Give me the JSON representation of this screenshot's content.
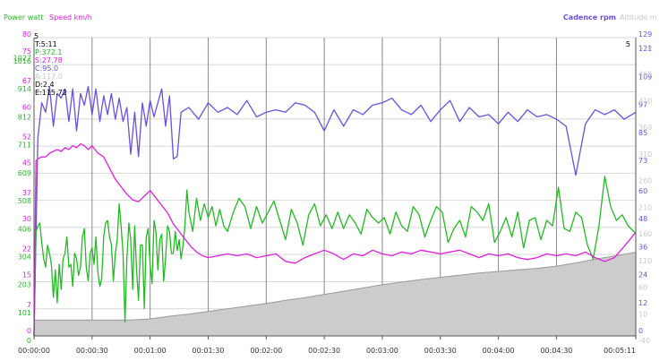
{
  "legend": {
    "left": [
      {
        "label": "Power watt",
        "color": "#22bb22"
      },
      {
        "label": "Speed km/h",
        "color": "#e020e0"
      }
    ],
    "right": [
      {
        "label": "Cadence rpm",
        "color": "#6a4fe0"
      },
      {
        "label": "Altitude m",
        "color": "#c8c8c8"
      }
    ]
  },
  "cursor": {
    "corner_left": "5",
    "corner_right": "5",
    "readouts": [
      {
        "text": "T:5:11",
        "color": "#000000"
      },
      {
        "text": "P:372.1",
        "color": "#22bb22"
      },
      {
        "text": "S:27.78",
        "color": "#e020e0"
      },
      {
        "text": "C:95.0",
        "color": "#6a4fe0"
      },
      {
        "text": "A:117.0",
        "color": "#c8c8c8"
      },
      {
        "text": "D:2.4",
        "color": "#000000"
      },
      {
        "text": "E:115.72",
        "color": "#000000"
      }
    ]
  },
  "chart_data": {
    "type": "line",
    "x_unit": "seconds",
    "x_range": [
      0,
      311
    ],
    "x_ticks": [
      {
        "t": 0,
        "label": "00:00:00"
      },
      {
        "t": 30,
        "label": "00:00:30"
      },
      {
        "t": 60,
        "label": "00:01:00"
      },
      {
        "t": 90,
        "label": "00:01:30"
      },
      {
        "t": 120,
        "label": "00:02:00"
      },
      {
        "t": 150,
        "label": "00:02:30"
      },
      {
        "t": 180,
        "label": "00:03:00"
      },
      {
        "t": 210,
        "label": "00:03:30"
      },
      {
        "t": 240,
        "label": "00:04:00"
      },
      {
        "t": 270,
        "label": "00:04:30"
      },
      {
        "t": 311,
        "label": "00:05:11"
      }
    ],
    "grid": true,
    "axes": {
      "speed": {
        "side": "left",
        "color": "#e020e0",
        "range": [
          0,
          80
        ],
        "ticks": [
          {
            "v": 80,
            "label": "80"
          },
          {
            "v": 75,
            "label": "75"
          },
          {
            "v": 67,
            "label": "67"
          },
          {
            "v": 60,
            "label": "60"
          },
          {
            "v": 52,
            "label": "52"
          },
          {
            "v": 45,
            "label": "45"
          },
          {
            "v": 37,
            "label": "37"
          },
          {
            "v": 30,
            "label": "30"
          },
          {
            "v": 22,
            "label": "22"
          },
          {
            "v": 15,
            "label": "15"
          },
          {
            "v": 7,
            "label": "7"
          },
          {
            "v": 0,
            "label": "0"
          }
        ]
      },
      "power": {
        "side": "left",
        "color": "#22bb22",
        "range": [
          0,
          1084
        ],
        "ticks": [
          {
            "v": 1027,
            "label": "1027"
          },
          {
            "v": 1016,
            "label": "1016"
          },
          {
            "v": 914,
            "label": "914"
          },
          {
            "v": 812,
            "label": "812"
          },
          {
            "v": 711,
            "label": "711"
          },
          {
            "v": 609,
            "label": "609"
          },
          {
            "v": 508,
            "label": "508"
          },
          {
            "v": 406,
            "label": "406"
          },
          {
            "v": 304,
            "label": "304"
          },
          {
            "v": 203,
            "label": "203"
          },
          {
            "v": 101,
            "label": "101"
          },
          {
            "v": 0,
            "label": "0"
          }
        ]
      },
      "cadence": {
        "side": "right",
        "color": "#6a4fe0",
        "range": [
          0,
          128
        ],
        "ticks": [
          {
            "v": 129,
            "label": "129"
          },
          {
            "v": 121,
            "label": "121"
          },
          {
            "v": 109,
            "label": "109"
          },
          {
            "v": 97,
            "label": "97"
          },
          {
            "v": 85,
            "label": "85"
          },
          {
            "v": 73,
            "label": "73"
          },
          {
            "v": 60,
            "label": "60"
          },
          {
            "v": 48,
            "label": "48"
          },
          {
            "v": 36,
            "label": "36"
          },
          {
            "v": 24,
            "label": "24"
          },
          {
            "v": 12,
            "label": "12"
          },
          {
            "v": 0,
            "label": "0"
          }
        ]
      },
      "altitude": {
        "side": "right",
        "color": "#c8c8c8",
        "range": [
          -40,
          520
        ],
        "ticks": [
          {
            "v": 510,
            "label": "510"
          },
          {
            "v": 460,
            "label": "460"
          },
          {
            "v": 410,
            "label": "410"
          },
          {
            "v": 360,
            "label": "360"
          },
          {
            "v": 310,
            "label": "310"
          },
          {
            "v": 260,
            "label": "260"
          },
          {
            "v": 210,
            "label": "210"
          },
          {
            "v": 160,
            "label": "160"
          },
          {
            "v": 110,
            "label": "110"
          },
          {
            "v": 60,
            "label": "60"
          },
          {
            "v": 10,
            "label": "10"
          },
          {
            "v": -40,
            "label": "-40"
          }
        ]
      }
    },
    "series": [
      {
        "name": "Altitude m",
        "axis": "altitude",
        "kind": "area",
        "color": "#cccccc",
        "line_color": "#9a9a9a",
        "x": [
          0,
          10,
          20,
          30,
          40,
          50,
          60,
          70,
          80,
          90,
          100,
          110,
          120,
          130,
          140,
          150,
          160,
          170,
          180,
          190,
          200,
          210,
          220,
          230,
          240,
          250,
          260,
          270,
          280,
          290,
          300,
          311
        ],
        "y": [
          -10,
          -10,
          -10,
          -10,
          -10,
          -10,
          -8,
          -3,
          1,
          6,
          11,
          16,
          21,
          27,
          32,
          38,
          44,
          50,
          56,
          61,
          66,
          70,
          74,
          78,
          81,
          84,
          87,
          91,
          97,
          104,
          110,
          117
        ]
      },
      {
        "name": "Cadence rpm",
        "axis": "cadence",
        "kind": "line",
        "color": "#6a4fe0",
        "x": [
          0,
          2,
          4,
          6,
          8,
          10,
          12,
          14,
          16,
          18,
          20,
          22,
          24,
          26,
          28,
          30,
          32,
          34,
          36,
          38,
          40,
          42,
          44,
          46,
          48,
          50,
          52,
          54,
          56,
          58,
          60,
          62,
          64,
          66,
          68,
          70,
          72,
          74,
          76,
          78,
          80,
          85,
          90,
          95,
          100,
          105,
          110,
          115,
          120,
          125,
          130,
          135,
          140,
          145,
          150,
          155,
          160,
          165,
          170,
          175,
          180,
          185,
          190,
          195,
          200,
          205,
          210,
          215,
          220,
          225,
          230,
          235,
          240,
          245,
          250,
          255,
          260,
          265,
          270,
          275,
          280,
          285,
          290,
          295,
          300,
          305,
          311
        ],
        "y": [
          0,
          85,
          100,
          96,
          107,
          90,
          104,
          102,
          106,
          92,
          106,
          88,
          104,
          99,
          107,
          95,
          106,
          92,
          103,
          95,
          104,
          93,
          102,
          92,
          98,
          78,
          96,
          77,
          100,
          90,
          101,
          94,
          100,
          106,
          90,
          103,
          76,
          77,
          96,
          97,
          98,
          93,
          100,
          96,
          98,
          95,
          101,
          94,
          96,
          97,
          96,
          100,
          99,
          96,
          88,
          97,
          90,
          97,
          95,
          99,
          100,
          102,
          97,
          95,
          99,
          92,
          97,
          101,
          92,
          98,
          94,
          95,
          91,
          96,
          92,
          97,
          94,
          95,
          93,
          90,
          69,
          91,
          97,
          95,
          97,
          93,
          96
        ]
      },
      {
        "name": "Power watt",
        "axis": "power",
        "kind": "line",
        "color": "#22bb22",
        "x": [
          0,
          1,
          2,
          3,
          4,
          5,
          6,
          7,
          8,
          9,
          10,
          11,
          12,
          13,
          14,
          15,
          16,
          17,
          18,
          19,
          20,
          21,
          22,
          23,
          24,
          25,
          26,
          27,
          28,
          29,
          30,
          31,
          32,
          33,
          34,
          35,
          36,
          37,
          38,
          39,
          40,
          41,
          42,
          43,
          44,
          45,
          46,
          47,
          48,
          49,
          50,
          51,
          52,
          53,
          54,
          55,
          56,
          57,
          58,
          59,
          60,
          61,
          62,
          63,
          64,
          65,
          66,
          67,
          68,
          69,
          70,
          71,
          72,
          73,
          74,
          75,
          76,
          77,
          78,
          79,
          80,
          82,
          84,
          86,
          88,
          90,
          92,
          94,
          96,
          98,
          100,
          103,
          106,
          109,
          112,
          115,
          118,
          121,
          124,
          127,
          130,
          133,
          136,
          139,
          142,
          145,
          148,
          151,
          154,
          157,
          160,
          163,
          166,
          169,
          172,
          175,
          178,
          181,
          184,
          187,
          190,
          193,
          196,
          199,
          202,
          205,
          208,
          211,
          214,
          217,
          220,
          223,
          226,
          229,
          232,
          235,
          238,
          241,
          244,
          247,
          250,
          253,
          256,
          259,
          262,
          265,
          268,
          271,
          274,
          277,
          280,
          283,
          286,
          289,
          292,
          295,
          298,
          301,
          304,
          307,
          311
        ],
        "y": [
          0,
          380,
          400,
          410,
          340,
          280,
          250,
          330,
          300,
          260,
          140,
          240,
          120,
          260,
          170,
          280,
          300,
          360,
          250,
          260,
          180,
          300,
          280,
          220,
          250,
          360,
          390,
          250,
          200,
          300,
          320,
          260,
          360,
          230,
          180,
          210,
          360,
          410,
          420,
          360,
          330,
          200,
          300,
          350,
          480,
          400,
          300,
          50,
          280,
          410,
          350,
          170,
          400,
          240,
          130,
          330,
          330,
          100,
          360,
          390,
          260,
          190,
          420,
          380,
          240,
          350,
          370,
          200,
          280,
          400,
          380,
          300,
          300,
          380,
          310,
          350,
          280,
          330,
          400,
          530,
          450,
          380,
          500,
          420,
          480,
          430,
          470,
          400,
          460,
          400,
          380,
          450,
          500,
          470,
          390,
          470,
          410,
          450,
          490,
          420,
          350,
          460,
          410,
          330,
          440,
          480,
          400,
          440,
          390,
          450,
          390,
          440,
          410,
          370,
          460,
          430,
          410,
          430,
          370,
          450,
          400,
          380,
          470,
          440,
          360,
          420,
          470,
          450,
          340,
          390,
          420,
          360,
          470,
          450,
          420,
          480,
          340,
          380,
          430,
          360,
          450,
          320,
          420,
          430,
          350,
          420,
          400,
          540,
          390,
          380,
          450,
          430,
          330,
          280,
          400,
          580,
          470,
          420,
          440,
          400,
          372
        ]
      },
      {
        "name": "Speed km/h",
        "axis": "speed",
        "kind": "line",
        "color": "#e020e0",
        "x": [
          0,
          1,
          2,
          4,
          6,
          8,
          10,
          12,
          14,
          16,
          18,
          20,
          22,
          24,
          26,
          28,
          30,
          33,
          36,
          39,
          42,
          45,
          48,
          51,
          54,
          57,
          60,
          63,
          66,
          69,
          72,
          75,
          78,
          81,
          84,
          87,
          90,
          95,
          100,
          105,
          110,
          115,
          120,
          125,
          130,
          135,
          140,
          145,
          150,
          155,
          160,
          165,
          170,
          175,
          180,
          185,
          190,
          195,
          200,
          205,
          210,
          215,
          220,
          225,
          230,
          235,
          240,
          245,
          250,
          255,
          260,
          265,
          270,
          275,
          280,
          285,
          290,
          295,
          300,
          305,
          311
        ],
        "y": [
          0,
          47,
          47.5,
          48,
          48,
          49,
          49.5,
          50,
          49.5,
          50.5,
          50,
          51,
          50.5,
          51.5,
          51,
          50,
          51,
          49,
          48,
          45,
          42,
          40,
          38,
          36.5,
          36,
          37.5,
          39,
          37,
          35,
          33,
          30,
          28,
          26,
          24,
          22.5,
          21.5,
          21,
          21.5,
          22,
          21.5,
          22,
          21,
          21.5,
          22,
          20,
          19.5,
          21,
          22,
          23,
          22,
          20.5,
          22,
          21.5,
          23,
          22,
          21.5,
          22.5,
          22,
          23,
          22.5,
          22,
          22.5,
          23,
          22,
          21,
          22,
          21.5,
          22,
          21,
          20.5,
          21,
          22,
          21.5,
          22,
          21.5,
          22.5,
          21,
          20,
          21,
          24,
          27.78
        ]
      }
    ]
  }
}
